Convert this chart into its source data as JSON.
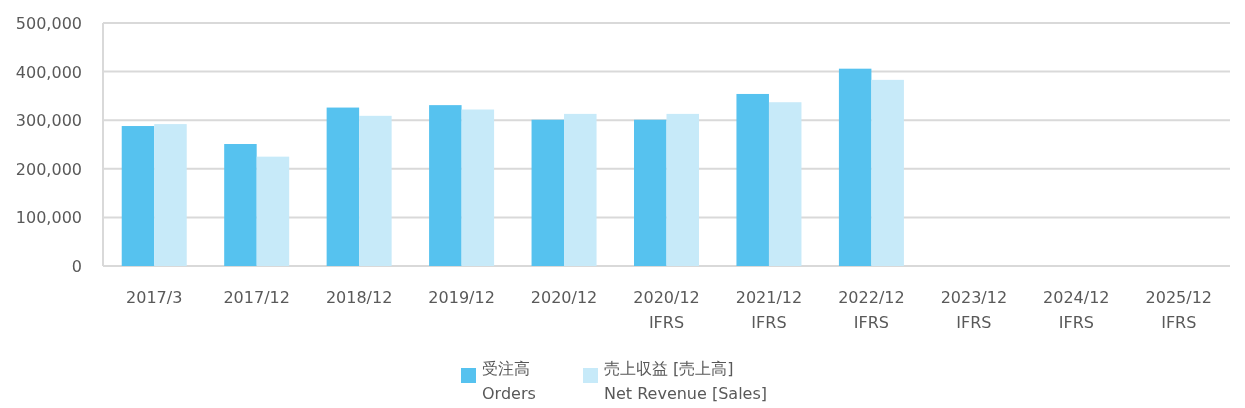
{
  "chart_data": {
    "type": "bar",
    "categories": [
      "2017/3",
      "2017/12",
      "2018/12",
      "2019/12",
      "2020/12",
      "2020/12\nIFRS",
      "2021/12\nIFRS",
      "2022/12\nIFRS",
      "2023/12\nIFRS",
      "2024/12\nIFRS",
      "2025/12\nIFRS"
    ],
    "series": [
      {
        "name": "受注高\nOrders",
        "color": "#56c2ef",
        "values": [
          288000,
          251000,
          326000,
          331000,
          301000,
          301000,
          354000,
          406000,
          null,
          null,
          null
        ]
      },
      {
        "name": "売上収益 [売上高]\nNet Revenue [Sales]",
        "color": "#c7eaf9",
        "values": [
          292000,
          225000,
          309000,
          322000,
          313000,
          313000,
          337000,
          383000,
          null,
          null,
          null
        ]
      }
    ],
    "ylim": [
      0,
      500000
    ],
    "yticks": [
      {
        "value": 0,
        "label": "0"
      },
      {
        "value": 100000,
        "label": "100,000"
      },
      {
        "value": 200000,
        "label": "200,000"
      },
      {
        "value": 300000,
        "label": "300,000"
      },
      {
        "value": 400000,
        "label": "400,000"
      },
      {
        "value": 500000,
        "label": "500,000"
      }
    ],
    "grid": "y",
    "legend": "bottom"
  }
}
